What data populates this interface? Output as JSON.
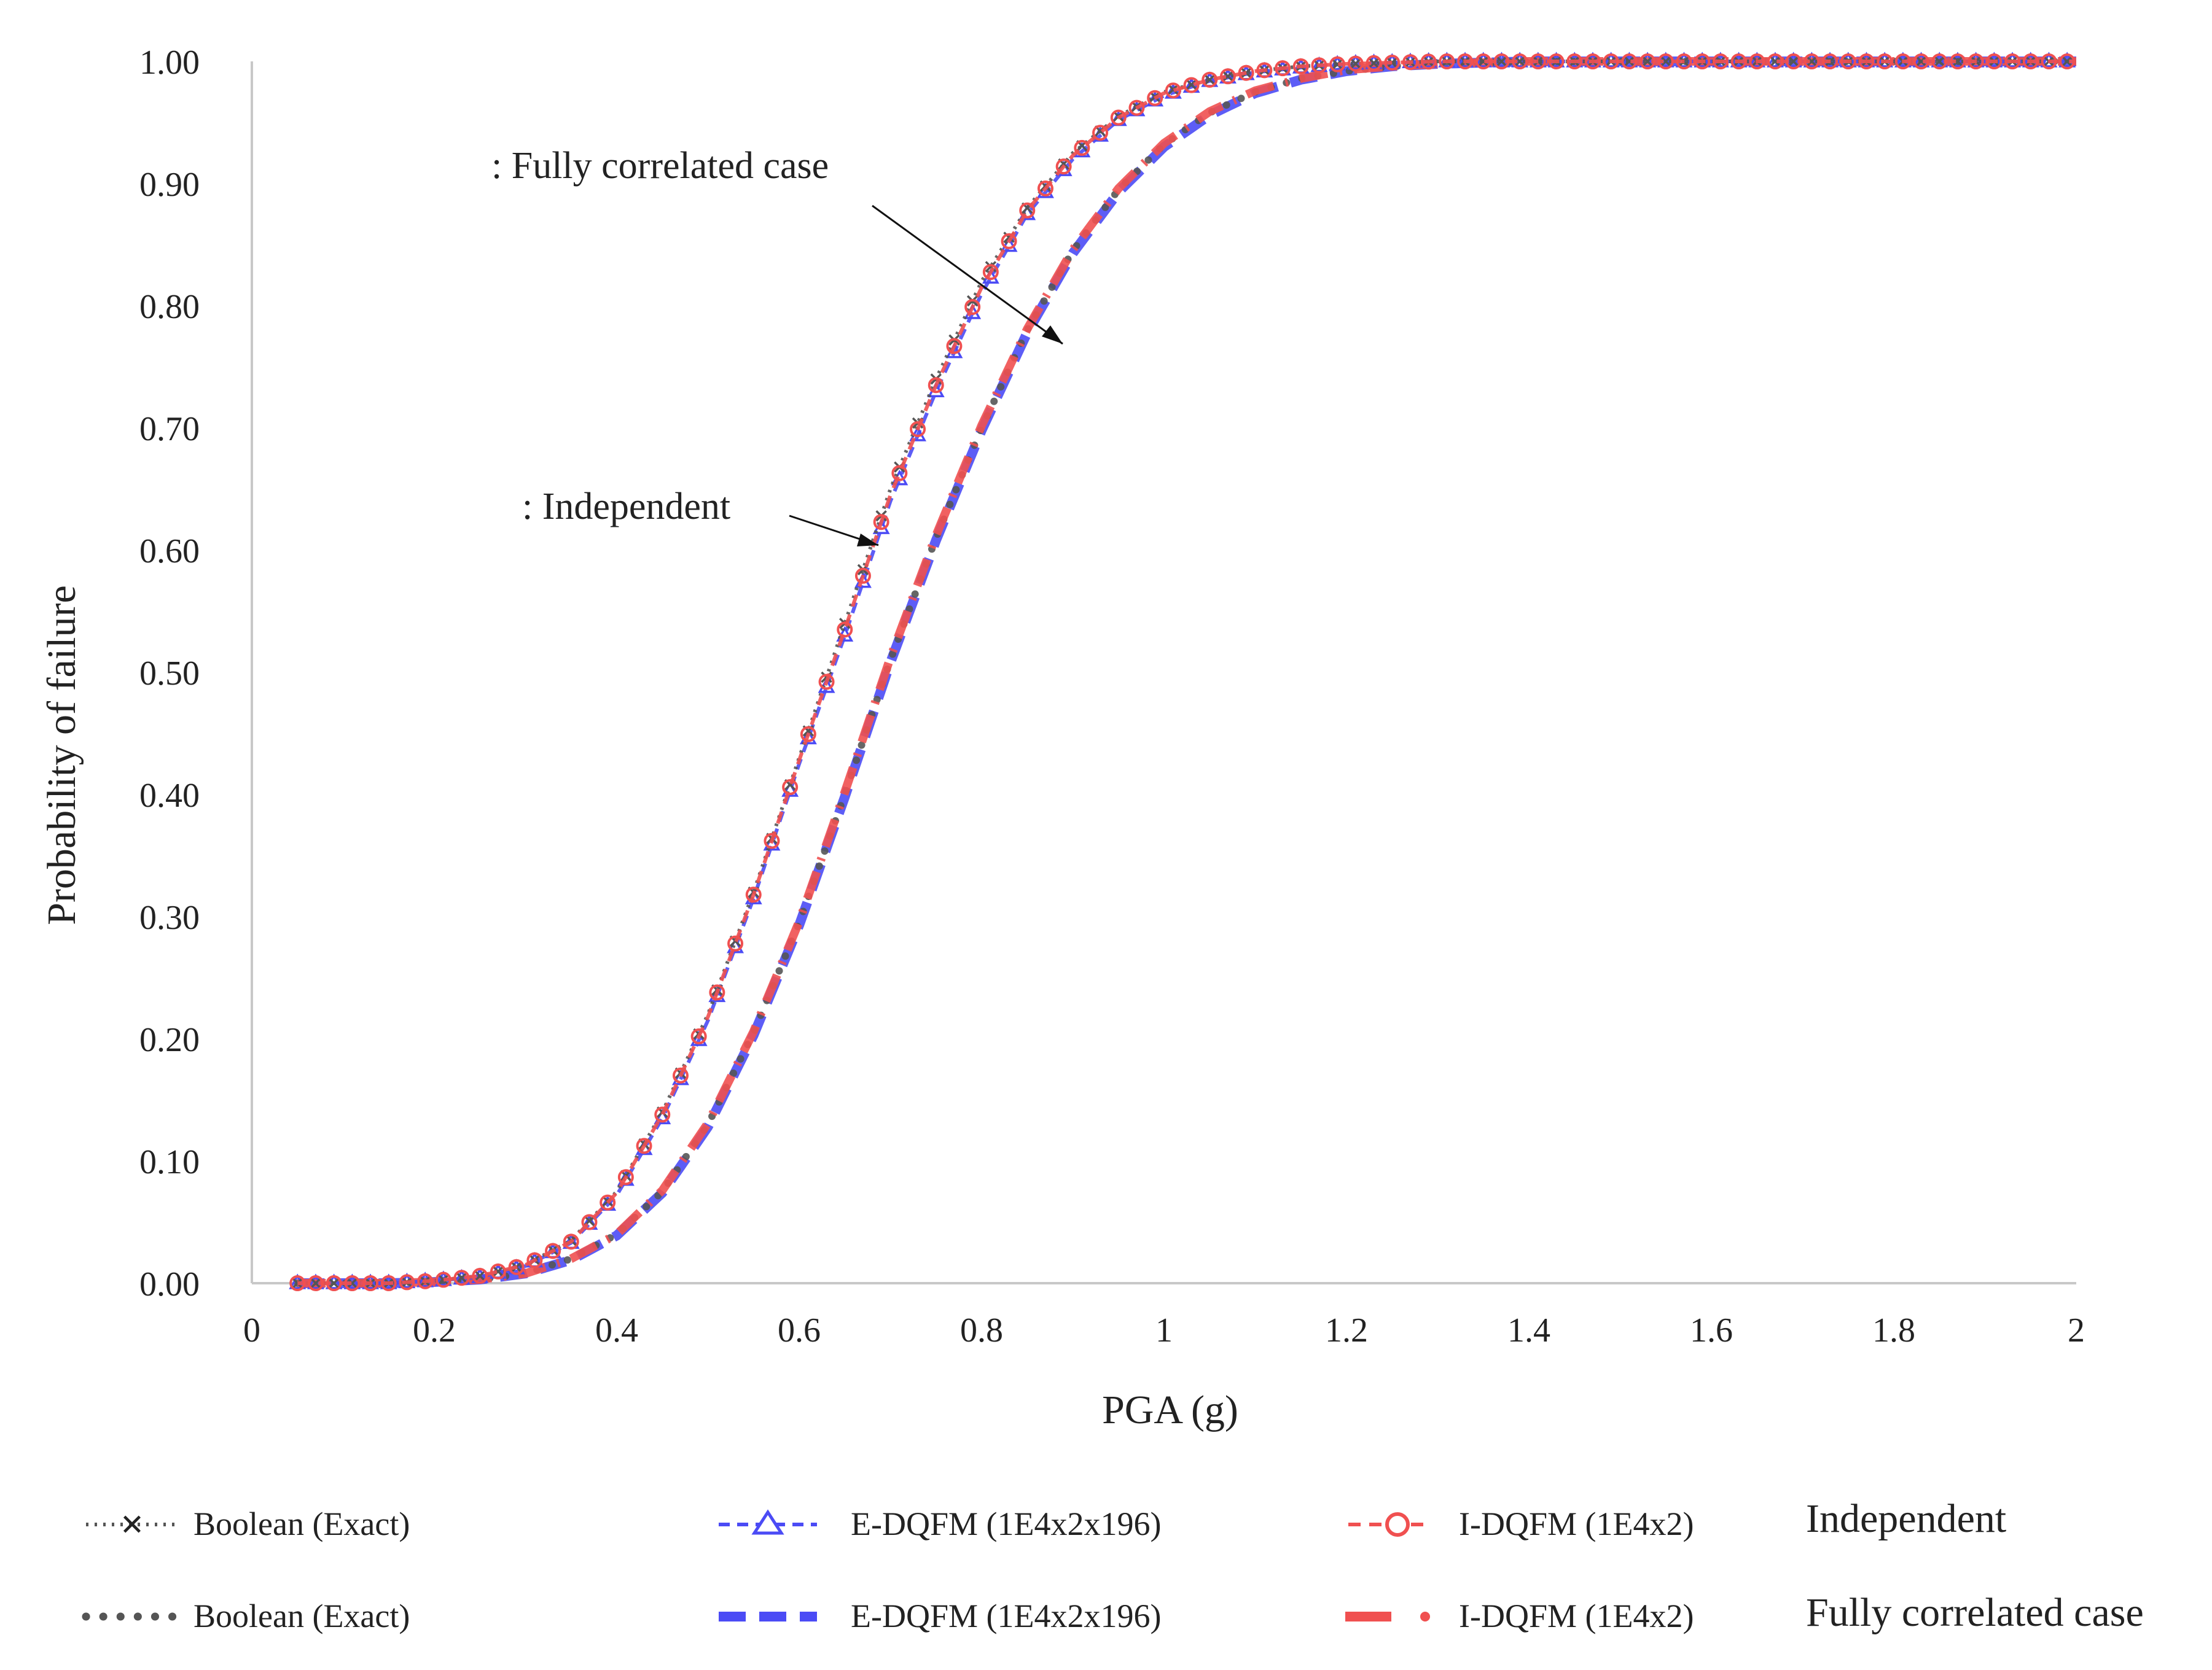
{
  "chart_data": {
    "type": "line",
    "title": "",
    "xlabel": "PGA (g)",
    "ylabel": "Probability of failure",
    "xlim": [
      0,
      2
    ],
    "ylim": [
      0,
      1
    ],
    "x_ticks": [
      "0",
      "0.2",
      "0.4",
      "0.6",
      "0.8",
      "1",
      "1.2",
      "1.4",
      "1.6",
      "1.8",
      "2"
    ],
    "y_ticks": [
      "0.00",
      "0.10",
      "0.20",
      "0.30",
      "0.40",
      "0.50",
      "0.60",
      "0.70",
      "0.80",
      "0.90",
      "1.00"
    ],
    "grid": false,
    "x": [
      0.05,
      0.1,
      0.15,
      0.2,
      0.25,
      0.3,
      0.35,
      0.4,
      0.45,
      0.5,
      0.55,
      0.6,
      0.65,
      0.7,
      0.75,
      0.8,
      0.85,
      0.9,
      0.95,
      1.0,
      1.05,
      1.1,
      1.15,
      1.2,
      1.25,
      1.3,
      1.35,
      1.4,
      1.5,
      1.6,
      1.7,
      1.8,
      1.9,
      2.0
    ],
    "series": [
      {
        "name": "Boolean (Exact)",
        "group": "Independent",
        "values": [
          0.0,
          0.0,
          0.0,
          0.002,
          0.006,
          0.015,
          0.035,
          0.075,
          0.14,
          0.22,
          0.32,
          0.43,
          0.54,
          0.65,
          0.74,
          0.82,
          0.88,
          0.925,
          0.955,
          0.975,
          0.985,
          0.992,
          0.996,
          0.998,
          0.999,
          1.0,
          1.0,
          1.0,
          1.0,
          1.0,
          1.0,
          1.0,
          1.0,
          1.0
        ]
      },
      {
        "name": "E-DQFM (1E4x2x196)",
        "group": "Independent",
        "values": [
          0.0,
          0.0,
          0.0,
          0.002,
          0.005,
          0.014,
          0.033,
          0.072,
          0.135,
          0.215,
          0.315,
          0.425,
          0.53,
          0.64,
          0.73,
          0.81,
          0.875,
          0.92,
          0.952,
          0.972,
          0.984,
          0.991,
          0.995,
          0.998,
          0.999,
          1.0,
          1.0,
          1.0,
          1.0,
          1.0,
          1.0,
          1.0,
          1.0,
          1.0
        ]
      },
      {
        "name": "I-DQFM (1E4x2)",
        "group": "Independent",
        "values": [
          0.0,
          0.0,
          0.0,
          0.002,
          0.006,
          0.015,
          0.034,
          0.074,
          0.138,
          0.218,
          0.318,
          0.428,
          0.535,
          0.645,
          0.735,
          0.815,
          0.878,
          0.923,
          0.954,
          0.974,
          0.985,
          0.992,
          0.996,
          0.998,
          0.999,
          1.0,
          1.0,
          1.0,
          1.0,
          1.0,
          1.0,
          1.0,
          1.0,
          1.0
        ]
      },
      {
        "name": "Boolean (Exact)",
        "group": "Fully correlated case",
        "values": [
          0.0,
          0.0,
          0.0,
          0.001,
          0.003,
          0.008,
          0.02,
          0.04,
          0.075,
          0.13,
          0.205,
          0.295,
          0.4,
          0.51,
          0.61,
          0.7,
          0.78,
          0.845,
          0.895,
          0.932,
          0.958,
          0.975,
          0.986,
          0.992,
          0.996,
          0.998,
          0.999,
          1.0,
          1.0,
          1.0,
          1.0,
          1.0,
          1.0,
          1.0
        ]
      },
      {
        "name": "E-DQFM (1E4x2x196)",
        "group": "Fully correlated case",
        "values": [
          0.0,
          0.0,
          0.0,
          0.001,
          0.003,
          0.008,
          0.019,
          0.039,
          0.074,
          0.128,
          0.203,
          0.293,
          0.398,
          0.508,
          0.608,
          0.698,
          0.778,
          0.843,
          0.893,
          0.93,
          0.956,
          0.974,
          0.985,
          0.992,
          0.996,
          0.998,
          0.999,
          1.0,
          1.0,
          1.0,
          1.0,
          1.0,
          1.0,
          1.0
        ]
      },
      {
        "name": "I-DQFM (1E4x2)",
        "group": "Fully correlated case",
        "values": [
          0.0,
          0.0,
          0.0,
          0.001,
          0.003,
          0.008,
          0.02,
          0.04,
          0.076,
          0.131,
          0.206,
          0.296,
          0.402,
          0.512,
          0.612,
          0.702,
          0.781,
          0.846,
          0.896,
          0.933,
          0.959,
          0.976,
          0.986,
          0.993,
          0.996,
          0.998,
          0.999,
          1.0,
          1.0,
          1.0,
          1.0,
          1.0,
          1.0,
          1.0
        ]
      }
    ],
    "annotations": [
      {
        "text": ": Fully correlated case",
        "points_to": "Fully correlated case curves"
      },
      {
        "text": ": Independent",
        "points_to": "Independent curves"
      }
    ],
    "legend": {
      "placement": "bottom",
      "group_labels": [
        "Independent",
        "Fully correlated case"
      ]
    }
  },
  "colors": {
    "boolean": "#555555",
    "edqfm": "#4b4bf5",
    "idqfm": "#f05050",
    "axis": "#c8c8c8",
    "text": "#222222"
  }
}
